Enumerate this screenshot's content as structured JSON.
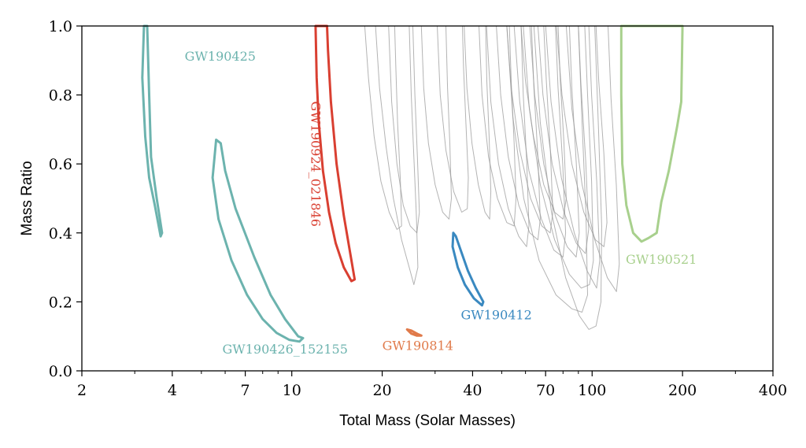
{
  "chart_data": {
    "type": "contour",
    "xlabel": "Total Mass (Solar Masses)",
    "ylabel": "Mass Ratio",
    "xscale": "log",
    "xlim": [
      2,
      400
    ],
    "ylim": [
      0,
      1
    ],
    "x_ticks": [
      2,
      4,
      7,
      10,
      20,
      40,
      70,
      100,
      200,
      400
    ],
    "x_tick_labels": [
      "2",
      "4",
      "7",
      "10",
      "20",
      "40",
      "70",
      "100",
      "200",
      "400"
    ],
    "y_ticks": [
      0,
      0.2,
      0.4,
      0.6,
      0.8,
      1.0
    ],
    "y_tick_labels": [
      "0.0",
      "0.2",
      "0.4",
      "0.6",
      "0.8",
      "1.0"
    ],
    "grid": false,
    "background_color": "#999999",
    "highlighted": [
      {
        "name": "GW190425",
        "color": "#6cb3ae",
        "label": {
          "x": 4.4,
          "y": 0.9
        },
        "outline": [
          [
            3.22,
            1.0
          ],
          [
            3.3,
            1.0
          ],
          [
            3.35,
            0.8
          ],
          [
            3.4,
            0.62
          ],
          [
            3.55,
            0.5
          ],
          [
            3.7,
            0.4
          ],
          [
            3.66,
            0.39
          ],
          [
            3.5,
            0.48
          ],
          [
            3.35,
            0.56
          ],
          [
            3.25,
            0.68
          ],
          [
            3.18,
            0.85
          ],
          [
            3.22,
            1.0
          ]
        ]
      },
      {
        "name": "GW190426_152155",
        "color": "#6cb3ae",
        "label": {
          "x": 9.5,
          "y": 0.05
        },
        "outline": [
          [
            5.6,
            0.67
          ],
          [
            5.8,
            0.66
          ],
          [
            6.0,
            0.58
          ],
          [
            6.5,
            0.47
          ],
          [
            7.5,
            0.33
          ],
          [
            8.5,
            0.22
          ],
          [
            9.5,
            0.15
          ],
          [
            10.5,
            0.1
          ],
          [
            10.9,
            0.095
          ],
          [
            10.6,
            0.085
          ],
          [
            9.8,
            0.09
          ],
          [
            8.9,
            0.11
          ],
          [
            8.0,
            0.15
          ],
          [
            7.1,
            0.22
          ],
          [
            6.3,
            0.32
          ],
          [
            5.7,
            0.44
          ],
          [
            5.45,
            0.56
          ],
          [
            5.6,
            0.67
          ]
        ]
      },
      {
        "name": "GW190924_021846",
        "color": "#d93f31",
        "label": {
          "x": 11.6,
          "y": 0.6,
          "rotation": 90
        },
        "outline": [
          [
            12.0,
            1.0
          ],
          [
            13.1,
            1.0
          ],
          [
            13.2,
            0.93
          ],
          [
            13.5,
            0.78
          ],
          [
            14.1,
            0.6
          ],
          [
            14.9,
            0.45
          ],
          [
            15.8,
            0.32
          ],
          [
            16.2,
            0.265
          ],
          [
            15.8,
            0.26
          ],
          [
            14.9,
            0.3
          ],
          [
            14.0,
            0.37
          ],
          [
            13.3,
            0.46
          ],
          [
            12.7,
            0.58
          ],
          [
            12.3,
            0.72
          ],
          [
            12.1,
            0.85
          ],
          [
            12.0,
            1.0
          ]
        ]
      },
      {
        "name": "GW190814",
        "color": "#e07a4a",
        "label": {
          "x": 20,
          "y": 0.06
        },
        "outline": [
          [
            24.2,
            0.12
          ],
          [
            25.0,
            0.117
          ],
          [
            26.2,
            0.107
          ],
          [
            27.0,
            0.102
          ],
          [
            26.1,
            0.102
          ],
          [
            25.0,
            0.108
          ],
          [
            24.2,
            0.12
          ]
        ]
      },
      {
        "name": "GW190412",
        "color": "#3a89c0",
        "label": {
          "x": 48,
          "y": 0.15
        },
        "outline": [
          [
            34.5,
            0.4
          ],
          [
            35.2,
            0.39
          ],
          [
            36.5,
            0.35
          ],
          [
            38.6,
            0.29
          ],
          [
            41.0,
            0.24
          ],
          [
            43.4,
            0.2
          ],
          [
            43.0,
            0.19
          ],
          [
            40.4,
            0.21
          ],
          [
            37.7,
            0.25
          ],
          [
            35.7,
            0.3
          ],
          [
            34.3,
            0.36
          ],
          [
            34.5,
            0.4
          ]
        ]
      },
      {
        "name": "GW190521",
        "color": "#a8d08d",
        "label": {
          "x": 170,
          "y": 0.31
        },
        "outline": [
          [
            125,
            1.0
          ],
          [
            200,
            1.0
          ],
          [
            198,
            0.78
          ],
          [
            192,
            0.71
          ],
          [
            180,
            0.58
          ],
          [
            170,
            0.49
          ],
          [
            164,
            0.4
          ],
          [
            154,
            0.385
          ],
          [
            146,
            0.375
          ],
          [
            137,
            0.4
          ],
          [
            130,
            0.48
          ],
          [
            126,
            0.6
          ],
          [
            125,
            0.8
          ],
          [
            125,
            1.0
          ]
        ]
      }
    ],
    "background_contours": [
      [
        [
          17.5,
          1.0
        ],
        [
          18.0,
          0.85
        ],
        [
          18.8,
          0.68
        ],
        [
          19.8,
          0.55
        ],
        [
          21.1,
          0.46
        ],
        [
          22.4,
          0.41
        ],
        [
          23.2,
          0.42
        ],
        [
          23.0,
          0.55
        ],
        [
          22.5,
          0.72
        ],
        [
          22.2,
          0.88
        ],
        [
          22.0,
          1.0
        ]
      ],
      [
        [
          19.0,
          1.0
        ],
        [
          19.6,
          0.82
        ],
        [
          20.6,
          0.65
        ],
        [
          21.8,
          0.5
        ],
        [
          23.2,
          0.38
        ],
        [
          24.6,
          0.3
        ],
        [
          25.5,
          0.25
        ],
        [
          26.3,
          0.3
        ],
        [
          26.0,
          0.45
        ],
        [
          25.5,
          0.62
        ],
        [
          25.0,
          0.8
        ],
        [
          24.6,
          1.0
        ]
      ],
      [
        [
          21.0,
          1.0
        ],
        [
          21.5,
          0.78
        ],
        [
          22.4,
          0.6
        ],
        [
          23.5,
          0.48
        ],
        [
          24.8,
          0.42
        ],
        [
          26.1,
          0.4
        ],
        [
          26.6,
          0.46
        ],
        [
          26.2,
          0.62
        ],
        [
          25.7,
          0.8
        ],
        [
          25.3,
          1.0
        ]
      ],
      [
        [
          27.0,
          1.0
        ],
        [
          27.5,
          0.82
        ],
        [
          28.5,
          0.66
        ],
        [
          30.0,
          0.54
        ],
        [
          31.8,
          0.46
        ],
        [
          33.4,
          0.44
        ],
        [
          34.0,
          0.5
        ],
        [
          33.6,
          0.66
        ],
        [
          33.0,
          0.82
        ],
        [
          32.6,
          1.0
        ]
      ],
      [
        [
          30.5,
          1.0
        ],
        [
          31.2,
          0.8
        ],
        [
          32.6,
          0.64
        ],
        [
          34.6,
          0.52
        ],
        [
          36.8,
          0.46
        ],
        [
          38.4,
          0.47
        ],
        [
          38.7,
          0.56
        ],
        [
          38.0,
          0.72
        ],
        [
          37.3,
          0.88
        ],
        [
          37.0,
          1.0
        ]
      ],
      [
        [
          37.5,
          1.0
        ],
        [
          38.3,
          0.82
        ],
        [
          39.8,
          0.66
        ],
        [
          41.8,
          0.54
        ],
        [
          44.0,
          0.46
        ],
        [
          45.6,
          0.44
        ],
        [
          46.0,
          0.52
        ],
        [
          45.4,
          0.68
        ],
        [
          44.6,
          0.84
        ],
        [
          44.2,
          1.0
        ]
      ],
      [
        [
          42.0,
          1.0
        ],
        [
          43.0,
          0.8
        ],
        [
          45.2,
          0.62
        ],
        [
          48.4,
          0.5
        ],
        [
          52.0,
          0.43
        ],
        [
          55.0,
          0.42
        ],
        [
          55.8,
          0.5
        ],
        [
          55.0,
          0.66
        ],
        [
          53.8,
          0.84
        ],
        [
          53.0,
          1.0
        ]
      ],
      [
        [
          44.5,
          1.0
        ],
        [
          46.0,
          0.78
        ],
        [
          48.8,
          0.6
        ],
        [
          52.6,
          0.47
        ],
        [
          57.0,
          0.39
        ],
        [
          60.5,
          0.36
        ],
        [
          61.6,
          0.42
        ],
        [
          60.6,
          0.6
        ],
        [
          59.0,
          0.8
        ],
        [
          58.0,
          1.0
        ]
      ],
      [
        [
          48.0,
          1.0
        ],
        [
          49.6,
          0.8
        ],
        [
          52.6,
          0.62
        ],
        [
          57.0,
          0.48
        ],
        [
          62.0,
          0.4
        ],
        [
          66.0,
          0.38
        ],
        [
          67.2,
          0.44
        ],
        [
          66.0,
          0.62
        ],
        [
          64.0,
          0.82
        ],
        [
          62.8,
          1.0
        ]
      ],
      [
        [
          52.0,
          1.0
        ],
        [
          53.8,
          0.82
        ],
        [
          57.4,
          0.64
        ],
        [
          62.4,
          0.5
        ],
        [
          68.0,
          0.42
        ],
        [
          72.5,
          0.4
        ],
        [
          74.0,
          0.46
        ],
        [
          72.6,
          0.64
        ],
        [
          70.4,
          0.84
        ],
        [
          69.0,
          1.0
        ]
      ],
      [
        [
          55.0,
          1.0
        ],
        [
          57.4,
          0.78
        ],
        [
          61.6,
          0.58
        ],
        [
          67.8,
          0.44
        ],
        [
          74.6,
          0.35
        ],
        [
          80.0,
          0.33
        ],
        [
          81.6,
          0.4
        ],
        [
          79.8,
          0.6
        ],
        [
          77.0,
          0.82
        ],
        [
          75.5,
          1.0
        ]
      ],
      [
        [
          58.0,
          1.0
        ],
        [
          60.0,
          0.84
        ],
        [
          63.8,
          0.68
        ],
        [
          69.0,
          0.54
        ],
        [
          75.0,
          0.46
        ],
        [
          80.0,
          0.44
        ],
        [
          82.0,
          0.5
        ],
        [
          80.6,
          0.66
        ],
        [
          78.4,
          0.84
        ],
        [
          77.0,
          1.0
        ]
      ],
      [
        [
          62.0,
          1.0
        ],
        [
          64.4,
          0.8
        ],
        [
          69.0,
          0.6
        ],
        [
          75.4,
          0.45
        ],
        [
          82.6,
          0.36
        ],
        [
          88.5,
          0.33
        ],
        [
          90.6,
          0.4
        ],
        [
          88.6,
          0.6
        ],
        [
          85.6,
          0.82
        ],
        [
          84.0,
          1.0
        ]
      ],
      [
        [
          66.0,
          1.0
        ],
        [
          68.6,
          0.8
        ],
        [
          73.6,
          0.6
        ],
        [
          80.6,
          0.46
        ],
        [
          88.6,
          0.37
        ],
        [
          95.0,
          0.34
        ],
        [
          97.4,
          0.41
        ],
        [
          95.2,
          0.61
        ],
        [
          91.8,
          0.83
        ],
        [
          90.0,
          1.0
        ]
      ],
      [
        [
          70.0,
          1.0
        ],
        [
          73.0,
          0.78
        ],
        [
          79.0,
          0.56
        ],
        [
          87.2,
          0.4
        ],
        [
          96.2,
          0.29
        ],
        [
          103.5,
          0.24
        ],
        [
          106.0,
          0.32
        ],
        [
          103.6,
          0.55
        ],
        [
          99.6,
          0.8
        ],
        [
          97.5,
          1.0
        ]
      ],
      [
        [
          76.0,
          1.0
        ],
        [
          79.4,
          0.8
        ],
        [
          85.6,
          0.6
        ],
        [
          93.8,
          0.46
        ],
        [
          102.6,
          0.38
        ],
        [
          109.5,
          0.36
        ],
        [
          112.0,
          0.43
        ],
        [
          109.4,
          0.63
        ],
        [
          105.2,
          0.84
        ],
        [
          103.0,
          1.0
        ]
      ],
      [
        [
          82.0,
          1.0
        ],
        [
          85.6,
          0.76
        ],
        [
          92.6,
          0.54
        ],
        [
          102.0,
          0.38
        ],
        [
          112.4,
          0.27
        ],
        [
          120.5,
          0.23
        ],
        [
          123.2,
          0.31
        ],
        [
          120.4,
          0.54
        ],
        [
          115.6,
          0.79
        ],
        [
          113.0,
          1.0
        ]
      ],
      [
        [
          52.0,
          1.0
        ],
        [
          54.4,
          0.74
        ],
        [
          59.2,
          0.5
        ],
        [
          66.6,
          0.32
        ],
        [
          75.8,
          0.22
        ],
        [
          85.6,
          0.18
        ],
        [
          92.6,
          0.17
        ],
        [
          96.6,
          0.22
        ],
        [
          95.4,
          0.45
        ],
        [
          92.6,
          0.72
        ],
        [
          90.0,
          1.0
        ]
      ],
      [
        [
          64.0,
          1.0
        ],
        [
          67.2,
          0.72
        ],
        [
          73.2,
          0.46
        ],
        [
          81.6,
          0.27
        ],
        [
          90.6,
          0.16
        ],
        [
          97.5,
          0.12
        ],
        [
          103.0,
          0.13
        ],
        [
          107.0,
          0.2
        ],
        [
          107.6,
          0.42
        ],
        [
          105.0,
          0.7
        ],
        [
          102.0,
          1.0
        ]
      ],
      [
        [
          59.0,
          1.0
        ],
        [
          61.8,
          0.76
        ],
        [
          67.2,
          0.54
        ],
        [
          75.0,
          0.38
        ],
        [
          84.0,
          0.28
        ],
        [
          92.0,
          0.24
        ],
        [
          98.0,
          0.25
        ],
        [
          101.0,
          0.32
        ],
        [
          99.6,
          0.55
        ],
        [
          96.6,
          0.8
        ],
        [
          94.5,
          1.0
        ]
      ]
    ]
  }
}
